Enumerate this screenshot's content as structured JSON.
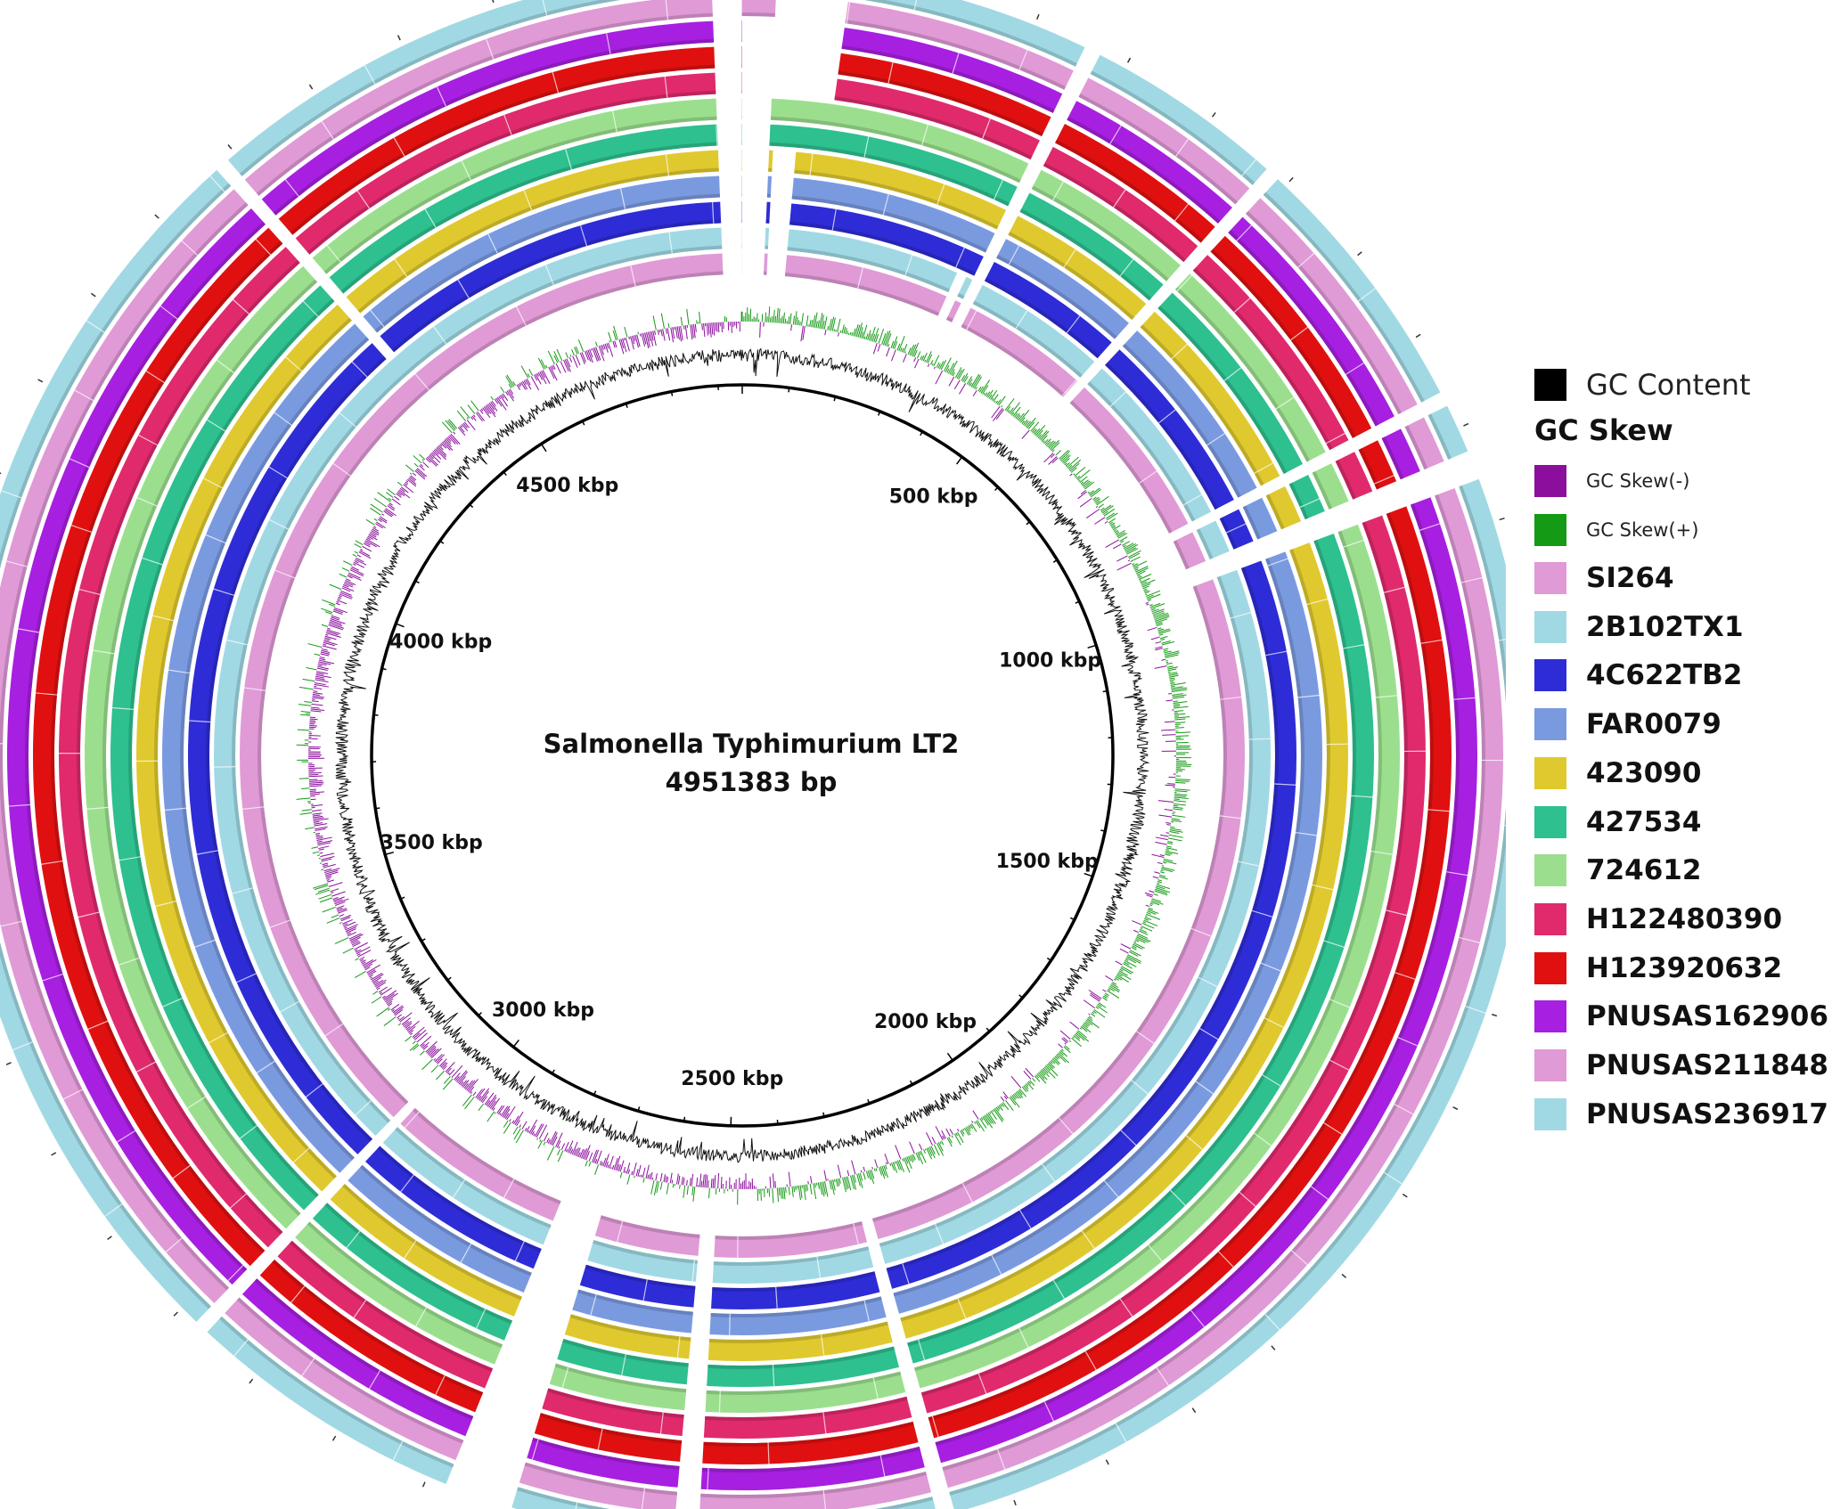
{
  "figure": {
    "genome_title": "Salmonella Typhimurium LT2",
    "genome_size_label": "4951383 bp",
    "genome_length_bp": 4951383,
    "position_labels": [
      {
        "text": "500 kbp",
        "value_kbp": 500
      },
      {
        "text": "1000 kbp",
        "value_kbp": 1000
      },
      {
        "text": "1500 kbp",
        "value_kbp": 1500
      },
      {
        "text": "2000 kbp",
        "value_kbp": 2000
      },
      {
        "text": "2500 kbp",
        "value_kbp": 2500
      },
      {
        "text": "3000 kbp",
        "value_kbp": 3000
      },
      {
        "text": "3500 kbp",
        "value_kbp": 3500
      },
      {
        "text": "4000 kbp",
        "value_kbp": 4000
      },
      {
        "text": "4500 kbp",
        "value_kbp": 4500
      }
    ]
  },
  "legend": {
    "gc_content": {
      "label": "GC Content",
      "color": "#000000"
    },
    "gc_skew_heading": "GC Skew",
    "gc_skew_negative": {
      "label": "GC Skew(-)",
      "color": "#8b0f9c"
    },
    "gc_skew_positive": {
      "label": "GC Skew(+)",
      "color": "#159a15"
    },
    "strains": [
      {
        "label": "SI264",
        "color": "#e09ad6"
      },
      {
        "label": "2B102TX1",
        "color": "#a0d9e4"
      },
      {
        "label": "4C622TB2",
        "color": "#2e2cd6"
      },
      {
        "label": "FAR0079",
        "color": "#7a9ae0"
      },
      {
        "label": "423090",
        "color": "#e0c92e"
      },
      {
        "label": "427534",
        "color": "#2ec08f"
      },
      {
        "label": "724612",
        "color": "#9bdf8e"
      },
      {
        "label": "H122480390",
        "color": "#e02a6c"
      },
      {
        "label": "H123920632",
        "color": "#e01010"
      },
      {
        "label": "PNUSAS162906",
        "color": "#a71fe0"
      },
      {
        "label": "PNUSAS211848",
        "color": "#e09ad6"
      },
      {
        "label": "PNUSAS236917",
        "color": "#a0d9e4"
      }
    ]
  },
  "gaps_kbp": [
    {
      "start": 4920,
      "end": 4951,
      "strains": "all"
    },
    {
      "start": 0,
      "end": 35,
      "strains": [
        0,
        1,
        2,
        3,
        4,
        5,
        6,
        7,
        8,
        9
      ]
    },
    {
      "start": 35,
      "end": 110,
      "strains": [
        7,
        8,
        9,
        10
      ]
    },
    {
      "start": 40,
      "end": 70,
      "strains": [
        0,
        1,
        2,
        3,
        4
      ]
    },
    {
      "start": 330,
      "end": 345,
      "strains": [
        0,
        1
      ]
    },
    {
      "start": 355,
      "end": 372,
      "strains": "all"
    },
    {
      "start": 575,
      "end": 590,
      "strains": "all"
    },
    {
      "start": 860,
      "end": 875,
      "strains": "all"
    },
    {
      "start": 925,
      "end": 955,
      "strains": "all"
    },
    {
      "start": 2260,
      "end": 2278,
      "strains": "all"
    },
    {
      "start": 2520,
      "end": 2545,
      "strains": "all"
    },
    {
      "start": 2710,
      "end": 2780,
      "strains": "all"
    },
    {
      "start": 3065,
      "end": 3080,
      "strains": [
        0,
        1,
        2,
        3,
        4,
        5,
        6,
        7,
        8,
        9,
        10,
        11
      ]
    },
    {
      "start": 4375,
      "end": 4390,
      "strains": [
        2,
        3,
        4,
        5,
        6,
        7,
        8,
        9,
        10,
        11
      ]
    }
  ]
}
